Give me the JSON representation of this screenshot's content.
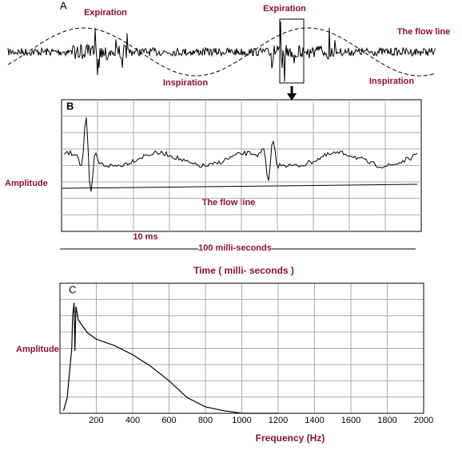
{
  "panels": {
    "a": {
      "label": "A",
      "expiration_1": "Expiration",
      "expiration_2": "Expiration",
      "inspiration_1": "Inspiration",
      "inspiration_2": "Inspiration",
      "flow_line": "The flow line"
    },
    "b": {
      "label": "B",
      "y_label": "Amplitude",
      "flow_line": "The flow line",
      "scale_short": "10 ms",
      "scale_long": "100 milli-seconds",
      "x_label": "Time  ( milli- seconds )"
    }
  },
  "chart_data": {
    "type": "line",
    "label": "C",
    "y_label": "Amplitude",
    "x_label": "Frequency (Hz)",
    "color": "#000000",
    "x": [
      20,
      40,
      55,
      65,
      70,
      78,
      82,
      88,
      100,
      150,
      200,
      300,
      400,
      500,
      600,
      700,
      800,
      900,
      1000,
      1200
    ],
    "values": [
      2,
      12,
      35,
      50,
      75,
      85,
      48,
      82,
      72,
      62,
      57,
      52,
      45,
      36,
      25,
      12,
      5,
      2,
      0,
      0
    ],
    "xlim": [
      0,
      2000
    ],
    "ylim": [
      0,
      100
    ],
    "xticks": [
      200,
      400,
      600,
      800,
      1000,
      1200,
      1400,
      1600,
      1800,
      2000
    ],
    "grid": true
  }
}
